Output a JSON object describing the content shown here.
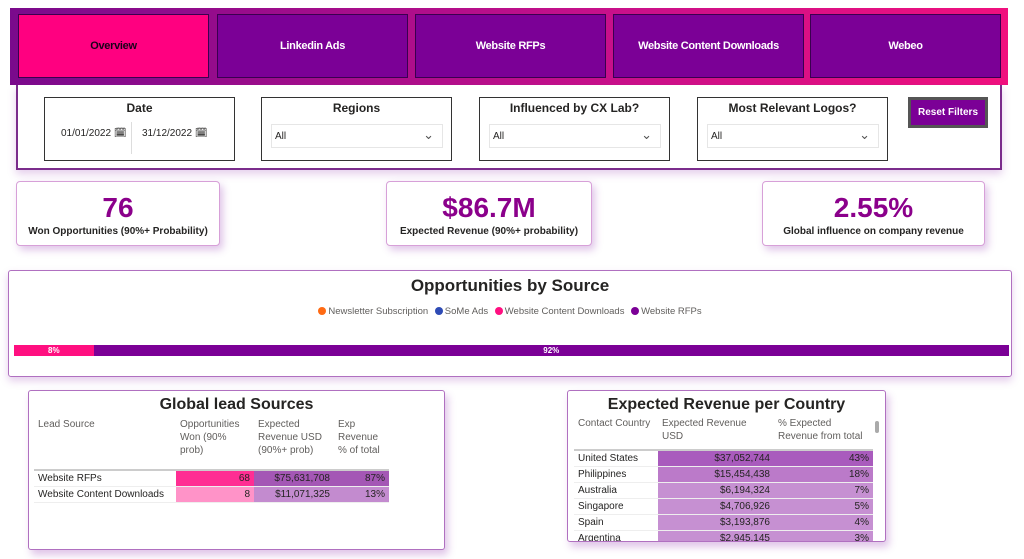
{
  "nav": {
    "tabs": [
      {
        "label": "Overview",
        "active": true
      },
      {
        "label": "Linkedin Ads"
      },
      {
        "label": "Website RFPs"
      },
      {
        "label": "Website Content Downloads"
      },
      {
        "label": "Webeo"
      }
    ]
  },
  "filters": {
    "date": {
      "label": "Date",
      "start": "01/01/2022",
      "end": "31/12/2022",
      "icon": "calendar-icon"
    },
    "regions": {
      "label": "Regions",
      "value": "All"
    },
    "cx_lab": {
      "label": "Influenced by CX Lab?",
      "value": "All"
    },
    "logos": {
      "label": "Most Relevant Logos?",
      "value": "All"
    },
    "reset_label": "Reset Filters"
  },
  "kpis": [
    {
      "value": "76",
      "label": "Won Opportunities (90%+ Probability)"
    },
    {
      "value": "$86.7M",
      "label": "Expected Revenue (90%+ probability)"
    },
    {
      "value": "2.55%",
      "label": "Global influence on company revenue"
    }
  ],
  "opportunities": {
    "title": "Opportunities by Source",
    "legend": [
      {
        "name": "Newsletter Subscription",
        "color": "#ff6a13"
      },
      {
        "name": "SoMe Ads",
        "color": "#2e4bb5"
      },
      {
        "name": "Website Content Downloads",
        "color": "#ff0f80"
      },
      {
        "name": "Website RFPs",
        "color": "#7b0096"
      }
    ]
  },
  "chart_data": {
    "type": "bar",
    "stacked": true,
    "orientation": "horizontal",
    "title": "Opportunities by Source",
    "legend_position": "top",
    "series": [
      {
        "name": "Website Content Downloads",
        "values": [
          8
        ],
        "label": "8%",
        "color": "#ff0f80"
      },
      {
        "name": "Website RFPs",
        "values": [
          92
        ],
        "label": "92%",
        "color": "#7b0096"
      }
    ]
  },
  "lead_sources": {
    "title": "Global lead Sources",
    "columns": [
      "Lead Source",
      "Opportunities Won (90% prob)",
      "Expected Revenue USD (90%+ prob)",
      "Exp Revenue % of total"
    ],
    "rows": [
      [
        "Website RFPs",
        "68",
        "$75,631,708",
        "87%"
      ],
      [
        "Website Content Downloads",
        "8",
        "$11,071,325",
        "13%"
      ]
    ]
  },
  "countries": {
    "title": "Expected Revenue per Country",
    "columns": [
      "Contact Country",
      "Expected Revenue USD",
      "% Expected Revenue from total"
    ],
    "rows": [
      [
        "United States",
        "$37,052,744",
        "43%"
      ],
      [
        "Philippines",
        "$15,454,438",
        "18%"
      ],
      [
        "Australia",
        "$6,194,324",
        "7%"
      ],
      [
        "Singapore",
        "$4,706,926",
        "5%"
      ],
      [
        "Spain",
        "$3,193,876",
        "4%"
      ],
      [
        "Argentina",
        "$2,945,145",
        "3%"
      ]
    ]
  }
}
